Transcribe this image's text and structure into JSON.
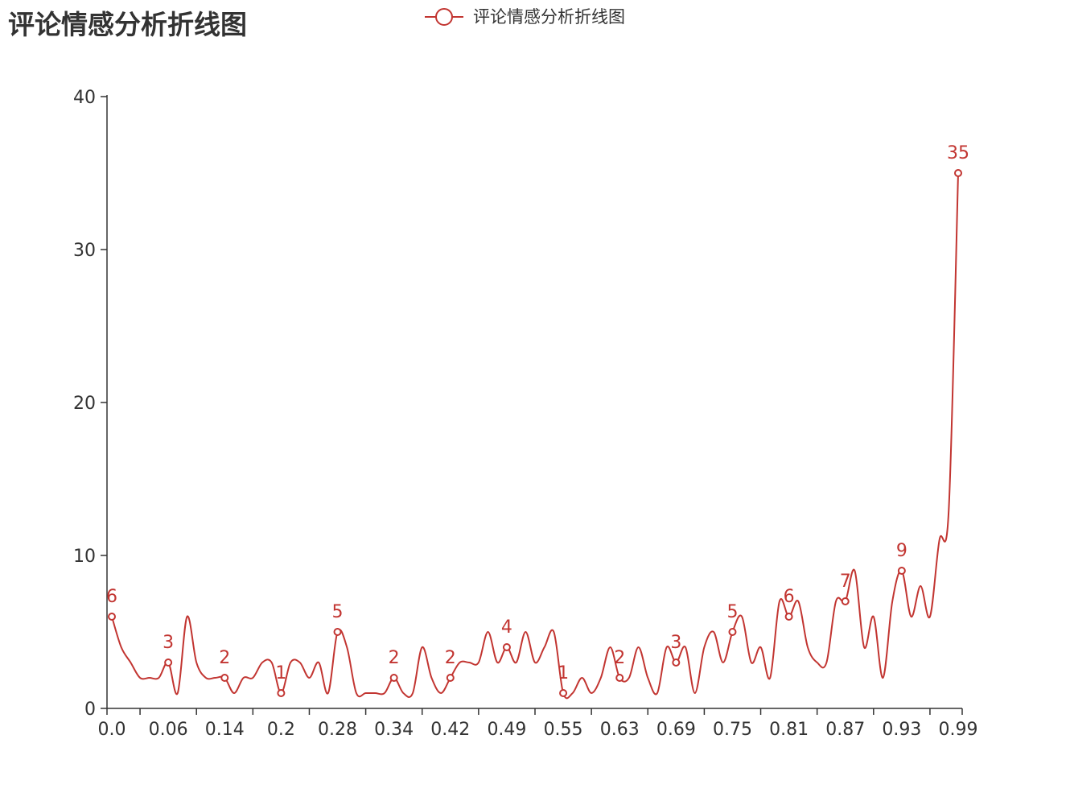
{
  "chart_data": {
    "type": "line",
    "title": "评论情感分析折线图",
    "legend": "top-center",
    "smooth": true,
    "xlabel": "",
    "ylabel": "",
    "ylim": [
      0,
      40
    ],
    "yticks": [
      0,
      10,
      20,
      30,
      40
    ],
    "grid": false,
    "color": "#c23531",
    "x_tick_labels": [
      "0.0",
      "0.06",
      "0.14",
      "0.2",
      "0.28",
      "0.34",
      "0.42",
      "0.49",
      "0.55",
      "0.63",
      "0.69",
      "0.75",
      "0.81",
      "0.87",
      "0.93",
      "0.99"
    ],
    "label_every": 6,
    "series": [
      {
        "name": "评论情感分析折线图",
        "values": [
          6,
          4,
          3,
          2,
          2,
          2,
          3,
          1,
          6,
          3,
          2,
          2,
          2,
          1,
          2,
          2,
          3,
          3,
          1,
          3,
          3,
          2,
          3,
          1,
          5,
          4,
          1,
          1,
          1,
          1,
          2,
          1,
          1,
          4,
          2,
          1,
          2,
          3,
          3,
          3,
          5,
          3,
          4,
          3,
          5,
          3,
          4,
          5,
          1,
          1,
          2,
          1,
          2,
          4,
          2,
          2,
          4,
          2,
          1,
          4,
          3,
          4,
          1,
          4,
          5,
          3,
          5,
          6,
          3,
          4,
          2,
          7,
          6,
          7,
          4,
          3,
          3,
          7,
          7,
          9,
          4,
          6,
          2,
          7,
          9,
          6,
          8,
          6,
          11,
          13,
          35
        ]
      }
    ]
  }
}
